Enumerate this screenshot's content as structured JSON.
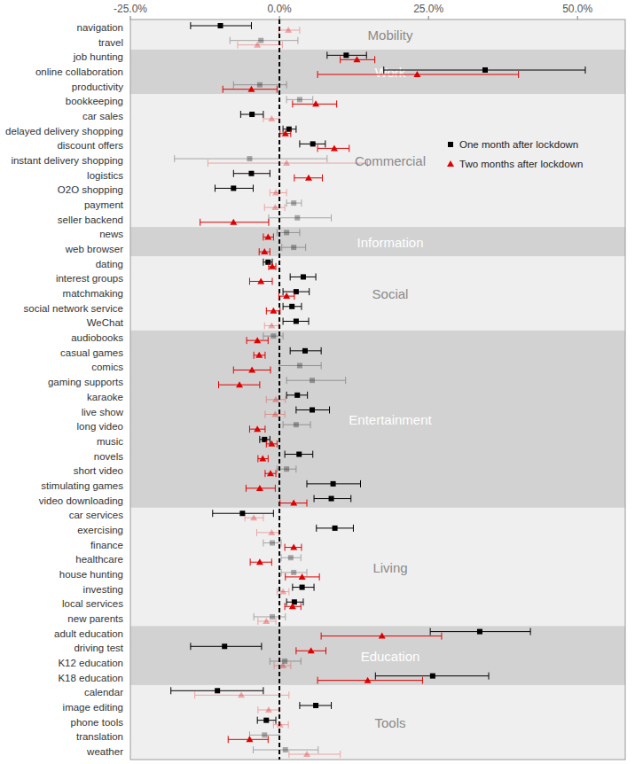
{
  "chart_data": {
    "type": "forest",
    "orientation": "horizontal",
    "xlim": [
      -25,
      58
    ],
    "xticks": [
      {
        "value": -25,
        "label": "-25.0%"
      },
      {
        "value": 0,
        "label": "0.0%"
      },
      {
        "value": 25,
        "label": "25.0%"
      },
      {
        "value": 50,
        "label": "50.0%"
      }
    ],
    "grid": false,
    "legend": "right",
    "categories": [
      "navigation",
      "travel",
      "job hunting",
      "online collaboration",
      "productivity",
      "bookkeeping",
      "car sales",
      "delayed delivery shopping",
      "discount offers",
      "instant delivery shopping",
      "logistics",
      "O2O shopping",
      "payment",
      "seller backend",
      "news",
      "web browser",
      "dating",
      "interest groups",
      "matchmaking",
      "social network service",
      "WeChat",
      "audiobooks",
      "casual games",
      "comics",
      "gaming supports",
      "karaoke",
      "live show",
      "long video",
      "music",
      "novels",
      "short video",
      "stimulating games",
      "video downloading",
      "car services",
      "exercising",
      "finance",
      "healthcare",
      "house hunting",
      "investing",
      "local services",
      "new parents",
      "adult education",
      "driving test",
      "K12 education",
      "K18 education",
      "calendar",
      "image editing",
      "phone tools",
      "translation",
      "weather"
    ],
    "groups": [
      {
        "name": "Mobility",
        "count": 2
      },
      {
        "name": "Work",
        "count": 3
      },
      {
        "name": "Commercial",
        "count": 9
      },
      {
        "name": "Information",
        "count": 2
      },
      {
        "name": "Social",
        "count": 5
      },
      {
        "name": "Entertainment",
        "count": 12
      },
      {
        "name": "Living",
        "count": 8
      },
      {
        "name": "Education",
        "count": 4
      },
      {
        "name": "Tools",
        "count": 5
      }
    ],
    "series": [
      {
        "name": "One month after lockdown",
        "color": "#000000",
        "marker": "square",
        "values": [
          -9.9,
          -3.1,
          11.2,
          34.5,
          -3.3,
          3.4,
          -4.6,
          1.6,
          5.6,
          -5.0,
          -4.7,
          -7.7,
          2.4,
          3.0,
          1.2,
          2.4,
          -1.9,
          4.0,
          2.8,
          2.1,
          2.8,
          -1.0,
          4.3,
          3.4,
          5.5,
          3.0,
          5.5,
          2.8,
          -2.5,
          3.3,
          1.2,
          9.0,
          8.7,
          -6.2,
          9.3,
          -1.2,
          1.9,
          2.4,
          3.8,
          2.5,
          -1.2,
          33.6,
          -9.2,
          0.9,
          25.7,
          -10.4,
          6.1,
          -2.2,
          -2.5,
          1.0
        ],
        "ci_low": [
          -14.9,
          -8.3,
          8.0,
          17.5,
          -7.7,
          1.2,
          -6.5,
          0.6,
          3.4,
          -17.6,
          -7.7,
          -10.8,
          1.2,
          -1.8,
          -0.4,
          0.4,
          -2.7,
          1.8,
          0.6,
          0.6,
          0.6,
          -2.7,
          1.8,
          0,
          1.2,
          1.2,
          2.8,
          0.6,
          -3.3,
          0.9,
          -0.4,
          4.6,
          5.8,
          -11.2,
          6.2,
          -2.7,
          0.3,
          0.3,
          2.2,
          1.2,
          -4.3,
          25.3,
          -14.9,
          -1.6,
          16.1,
          -18.2,
          3.4,
          -3.7,
          -5.0,
          -4.4
        ],
        "ci_high": [
          -4.7,
          3.1,
          14.6,
          51.3,
          1.2,
          5.6,
          -2.7,
          2.8,
          7.7,
          8.0,
          -1.6,
          -4.4,
          3.7,
          8.7,
          3.4,
          4.4,
          -1.2,
          6.1,
          5.0,
          3.7,
          4.9,
          0.6,
          7.0,
          7.0,
          11.1,
          4.7,
          8.4,
          5.2,
          -1.6,
          5.6,
          2.8,
          13.6,
          12.0,
          -1.0,
          12.4,
          0.3,
          3.6,
          4.6,
          5.8,
          4.0,
          1.0,
          42.1,
          -3.0,
          3.6,
          35.1,
          -2.7,
          8.7,
          -0.6,
          0,
          6.5
        ],
        "significant": [
          true,
          false,
          true,
          true,
          false,
          false,
          true,
          true,
          true,
          false,
          true,
          true,
          false,
          false,
          false,
          false,
          true,
          true,
          true,
          true,
          true,
          false,
          true,
          false,
          false,
          true,
          true,
          false,
          true,
          true,
          false,
          true,
          true,
          true,
          true,
          false,
          false,
          false,
          true,
          true,
          false,
          true,
          true,
          false,
          true,
          true,
          true,
          true,
          false,
          false
        ]
      },
      {
        "name": "Two months after lockdown",
        "color": "#e00000",
        "marker": "triangle",
        "values": [
          1.5,
          -3.7,
          13.0,
          23.1,
          -4.7,
          6.1,
          -1.3,
          1.0,
          9.2,
          1.2,
          4.9,
          -0.6,
          -0.7,
          -7.7,
          -1.9,
          -2.5,
          -1.2,
          -3.1,
          1.2,
          -1.0,
          -1.3,
          -3.7,
          -3.4,
          -4.6,
          -6.7,
          -0.6,
          -0.7,
          -3.7,
          -1.3,
          -2.8,
          -1.5,
          -3.3,
          2.4,
          -4.3,
          -1.3,
          2.4,
          -3.3,
          3.8,
          0.6,
          2.2,
          -2.2,
          17.2,
          5.3,
          0.6,
          14.8,
          -6.4,
          -1.8,
          0.1,
          -5.0,
          4.6
        ],
        "ci_low": [
          -0.1,
          -7.0,
          10.2,
          6.4,
          -9.5,
          2.2,
          -2.7,
          0.1,
          6.4,
          -12.0,
          2.5,
          -1.6,
          -2.5,
          -13.3,
          -2.7,
          -3.4,
          -1.8,
          -5.0,
          -0.1,
          -2.2,
          -2.5,
          -5.5,
          -4.3,
          -7.7,
          -10.2,
          -2.2,
          -2.4,
          -5.0,
          -2.2,
          -3.6,
          -2.4,
          -5.6,
          0.1,
          -5.8,
          -3.8,
          0.9,
          -4.9,
          1.0,
          -0.4,
          0.9,
          -3.6,
          7.0,
          2.8,
          -0.9,
          6.4,
          -14.2,
          -3.6,
          -1.0,
          -8.6,
          1.6
        ],
        "ci_high": [
          3.4,
          0.5,
          16.0,
          40.1,
          -0.4,
          9.6,
          0,
          1.9,
          11.7,
          14.8,
          7.2,
          1.2,
          0.9,
          -1.8,
          -1.0,
          -1.6,
          -0.6,
          -1.2,
          2.5,
          0.1,
          -0.1,
          -1.9,
          -2.4,
          -1.5,
          -3.3,
          1.0,
          0.9,
          -2.4,
          -0.4,
          -1.9,
          -0.6,
          -0.7,
          4.6,
          -2.7,
          -0.1,
          3.7,
          -1.3,
          6.7,
          1.6,
          3.6,
          -0.6,
          27.2,
          7.8,
          1.9,
          24.0,
          1.6,
          0,
          1.5,
          -1.9,
          10.2
        ],
        "significant": [
          false,
          false,
          true,
          true,
          true,
          true,
          false,
          true,
          true,
          false,
          true,
          false,
          false,
          true,
          true,
          true,
          true,
          true,
          true,
          true,
          false,
          true,
          true,
          true,
          true,
          false,
          false,
          true,
          true,
          true,
          true,
          true,
          true,
          false,
          false,
          true,
          true,
          true,
          false,
          true,
          false,
          true,
          true,
          false,
          true,
          false,
          false,
          false,
          true,
          false
        ]
      }
    ]
  }
}
